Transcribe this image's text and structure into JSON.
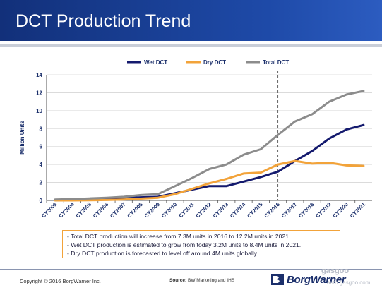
{
  "header": {
    "title": "DCT Production Trend"
  },
  "chart_data": {
    "type": "line",
    "ylabel": "Million Units",
    "ylim": [
      0,
      14
    ],
    "yticks": [
      0,
      2,
      4,
      6,
      8,
      10,
      12,
      14
    ],
    "categories": [
      "CY2003",
      "CY2004",
      "CY2005",
      "CY2006",
      "CY2007",
      "CY2008",
      "CY2009",
      "CY2010",
      "CY2011",
      "CY2012",
      "CY2013",
      "CY2014",
      "CY2015",
      "CY2016",
      "CY2017",
      "CY2018",
      "CY2019",
      "CY2020",
      "CY2021"
    ],
    "legend_position": "top",
    "forecast_divider_after": "CY2016",
    "series": [
      {
        "name": "Wet DCT",
        "color": "#141a6e",
        "values": [
          0.05,
          0.08,
          0.12,
          0.18,
          0.25,
          0.35,
          0.4,
          0.8,
          1.2,
          1.6,
          1.6,
          2.1,
          2.6,
          3.2,
          4.4,
          5.5,
          6.9,
          7.9,
          8.4
        ]
      },
      {
        "name": "Dry DCT",
        "color": "#f2a33a",
        "values": [
          0.0,
          0.0,
          0.02,
          0.05,
          0.1,
          0.2,
          0.3,
          0.7,
          1.3,
          1.9,
          2.4,
          3.0,
          3.1,
          4.0,
          4.4,
          4.1,
          4.2,
          3.9,
          3.85
        ]
      },
      {
        "name": "Total DCT",
        "color": "#8c8c8c",
        "values": [
          0.1,
          0.15,
          0.22,
          0.3,
          0.4,
          0.6,
          0.7,
          1.6,
          2.5,
          3.5,
          4.0,
          5.1,
          5.7,
          7.3,
          8.8,
          9.6,
          11.0,
          11.8,
          12.2
        ]
      }
    ]
  },
  "notes": [
    "- Total DCT production will increase from 7.3M units in 2016 to 12.2M units in 2021.",
    "- Wet DCT production is estimated to grow from today 3.2M units to 8.4M units in 2021.",
    "- Dry DCT production is forecasted to level off around 4M units globally."
  ],
  "footer": {
    "copyright": "Copyright © 2016 BorgWarner Inc.",
    "source_label": "Source:",
    "source_text": "BW Marketing and IHS",
    "logo_text": "BorgWarner"
  },
  "watermark": {
    "line1": "gasgoo",
    "line2": "auto.gasgoo.com"
  }
}
